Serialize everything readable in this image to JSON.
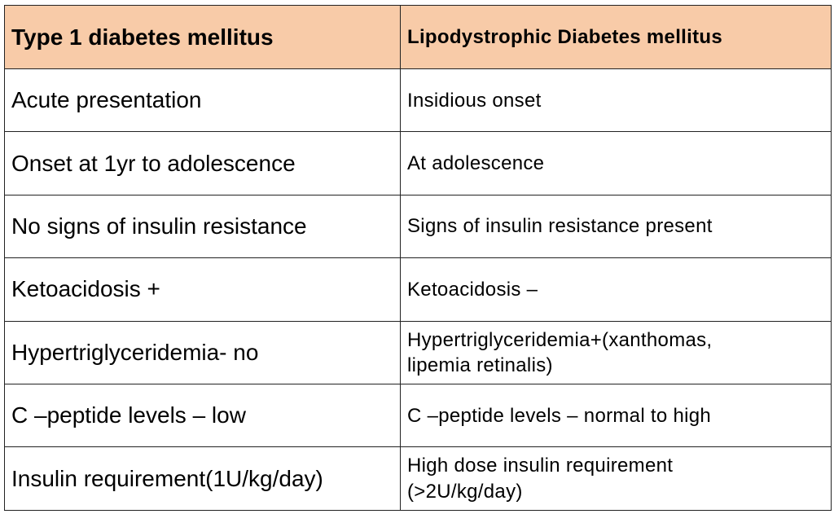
{
  "table": {
    "header": [
      "Type 1 diabetes mellitus",
      "Lipodystrophic Diabetes mellitus"
    ],
    "rows": [
      [
        [
          "Acute presentation"
        ],
        [
          "Insidious onset"
        ]
      ],
      [
        [
          "Onset at 1yr to adolescence"
        ],
        [
          "At adolescence"
        ]
      ],
      [
        [
          "No signs of insulin resistance"
        ],
        [
          "Signs of insulin resistance present"
        ]
      ],
      [
        [
          "Ketoacidosis +"
        ],
        [
          "Ketoacidosis –"
        ]
      ],
      [
        [
          "Hypertriglyceridemia- no"
        ],
        [
          "Hypertriglyceridemia+(xanthomas,",
          "lipemia retinalis)"
        ]
      ],
      [
        [
          "C –peptide levels – low"
        ],
        [
          "C –peptide levels – normal to high"
        ]
      ],
      [
        [
          "Insulin requirement(1U/kg/day)"
        ],
        [
          "High dose insulin requirement",
          "(>2U/kg/day)"
        ]
      ]
    ]
  }
}
